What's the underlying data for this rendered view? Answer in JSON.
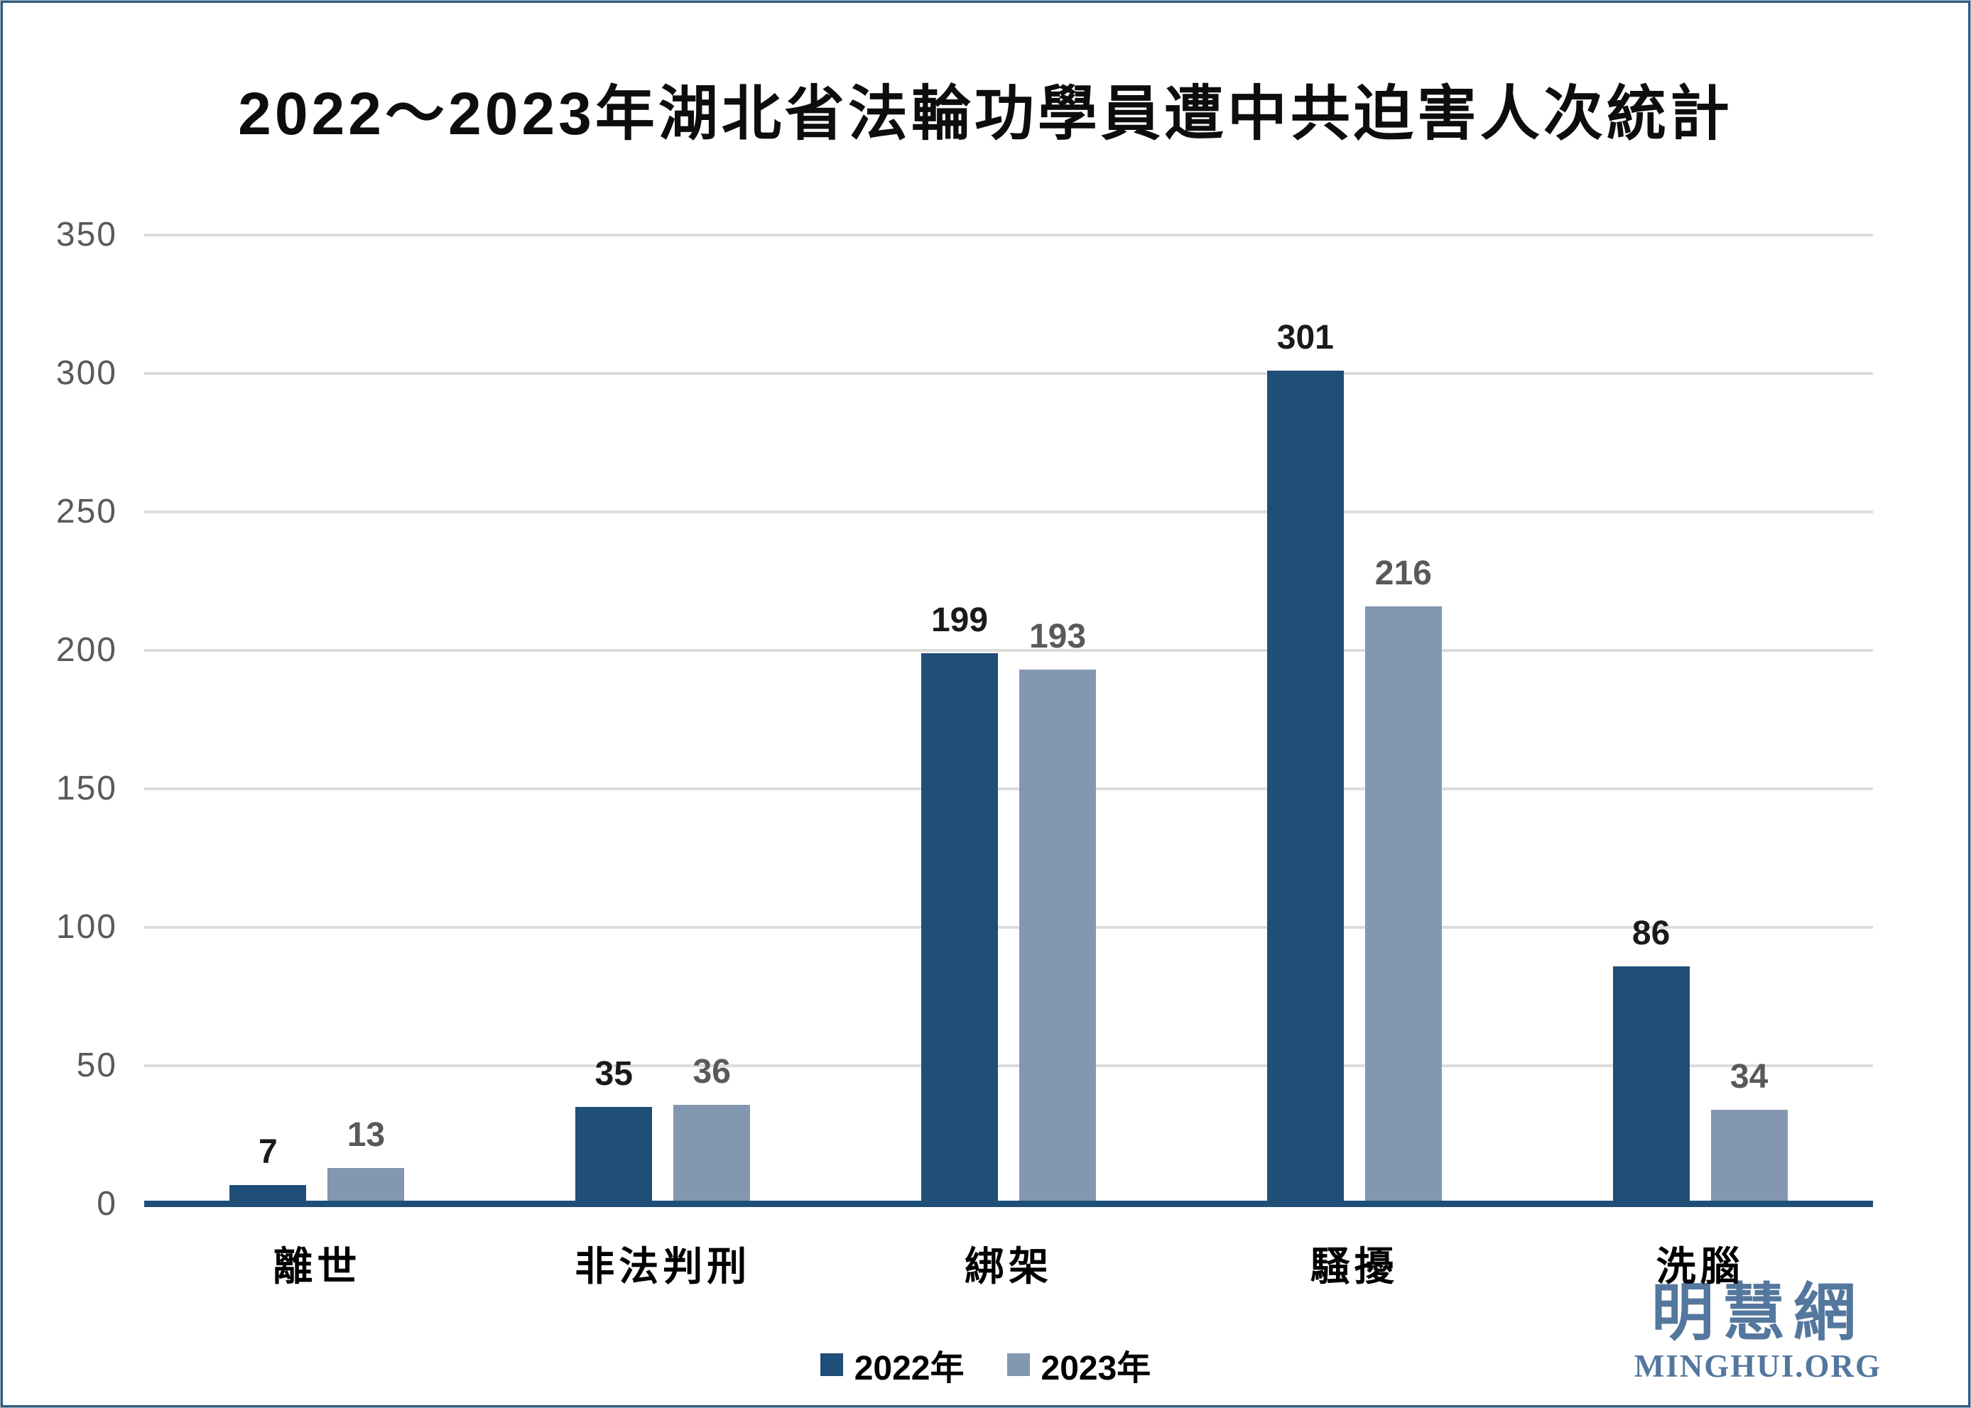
{
  "page": {
    "title": "2022～2023年湖北省法輪功學員遭中共迫害人次統計",
    "logo": {
      "cjk": "明慧網",
      "latin": "MINGHUI.ORG"
    }
  },
  "colors": {
    "series_2022": "#1F4E78",
    "series_2023": "#8497B0",
    "gridline": "#DCDCDC",
    "axis_line": "#1F4E78",
    "tick_label": "#595959",
    "data_label_2022": "#1a1a1a",
    "data_label_2023": "#595959",
    "frame_border": "#2F5A84",
    "logo_blue": "#54779E"
  },
  "chart_data": {
    "type": "bar",
    "title": "2022～2023年湖北省法輪功學員遭中共迫害人次統計",
    "categories": [
      "離世",
      "非法判刑",
      "綁架",
      "騷擾",
      "洗腦"
    ],
    "series": [
      {
        "name": "2022年",
        "color": "#1F4E78",
        "label_color": "#1a1a1a",
        "values": [
          7,
          35,
          199,
          301,
          86
        ]
      },
      {
        "name": "2023年",
        "color": "#8497B0",
        "label_color": "#595959",
        "values": [
          13,
          36,
          193,
          216,
          34
        ]
      }
    ],
    "ylim": [
      0,
      350
    ],
    "yticks": [
      0,
      50,
      100,
      150,
      200,
      250,
      300,
      350
    ],
    "grid": true,
    "legend_position": "bottom",
    "data_labels": true
  },
  "legend": {
    "items": [
      {
        "label": "2022年",
        "color": "#1F4E78"
      },
      {
        "label": "2023年",
        "color": "#8497B0"
      }
    ]
  }
}
